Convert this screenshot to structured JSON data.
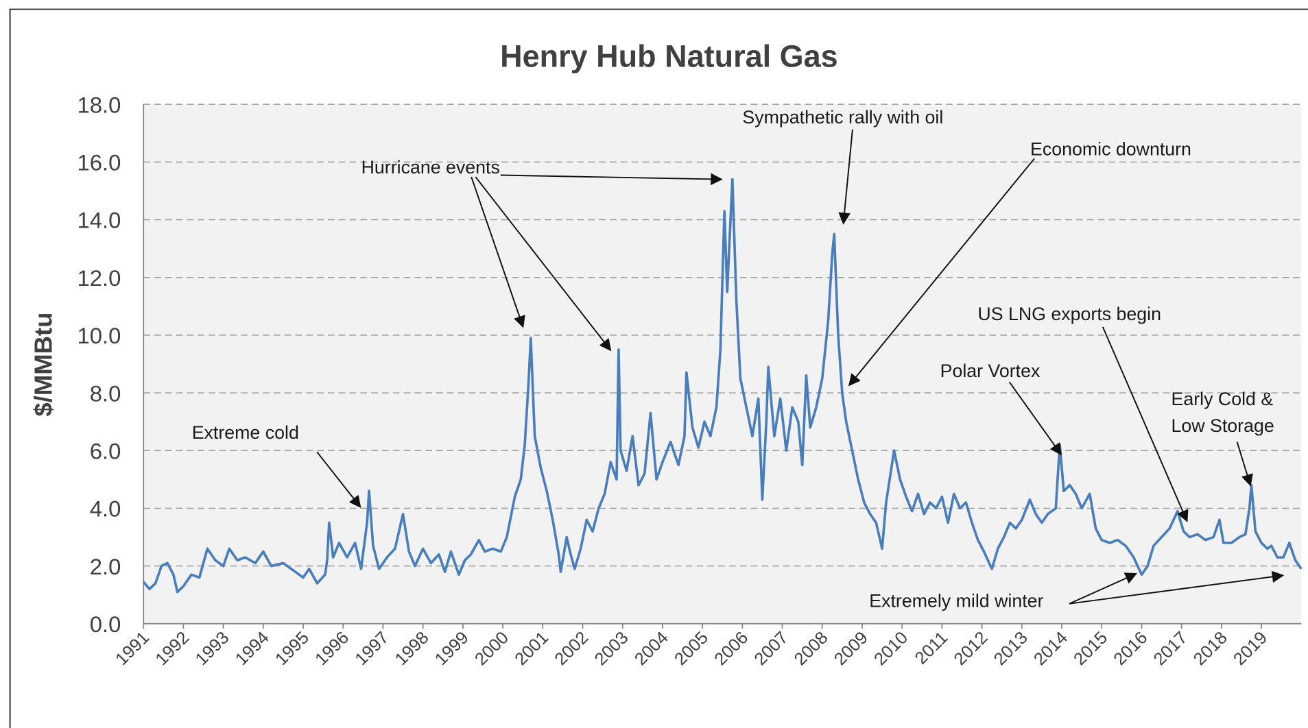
{
  "chart_data": {
    "type": "line",
    "title": "Henry Hub Natural Gas",
    "y_label": "$/MMBtu",
    "x": [
      1991.0,
      1991.15,
      1991.3,
      1991.45,
      1991.6,
      1991.75,
      1991.85,
      1992.0,
      1992.2,
      1992.4,
      1992.6,
      1992.8,
      1993.0,
      1993.15,
      1993.35,
      1993.55,
      1993.8,
      1994.0,
      1994.2,
      1994.5,
      1994.8,
      1995.0,
      1995.15,
      1995.35,
      1995.55,
      1995.6,
      1995.65,
      1995.75,
      1995.9,
      1996.1,
      1996.3,
      1996.45,
      1996.6,
      1996.65,
      1996.75,
      1996.9,
      1997.1,
      1997.3,
      1997.5,
      1997.65,
      1997.8,
      1998.0,
      1998.2,
      1998.4,
      1998.55,
      1998.7,
      1998.9,
      1999.05,
      1999.2,
      1999.4,
      1999.55,
      1999.75,
      1999.95,
      2000.1,
      2000.3,
      2000.45,
      2000.55,
      2000.65,
      2000.7,
      2000.8,
      2000.95,
      2001.1,
      2001.25,
      2001.4,
      2001.45,
      2001.6,
      2001.7,
      2001.8,
      2001.95,
      2002.1,
      2002.25,
      2002.4,
      2002.55,
      2002.7,
      2002.85,
      2002.9,
      2002.95,
      2003.1,
      2003.25,
      2003.4,
      2003.55,
      2003.7,
      2003.85,
      2004.0,
      2004.2,
      2004.4,
      2004.55,
      2004.6,
      2004.75,
      2004.9,
      2005.05,
      2005.2,
      2005.35,
      2005.45,
      2005.55,
      2005.62,
      2005.75,
      2005.85,
      2005.95,
      2006.1,
      2006.25,
      2006.4,
      2006.5,
      2006.6,
      2006.65,
      2006.8,
      2006.95,
      2007.1,
      2007.25,
      2007.4,
      2007.5,
      2007.6,
      2007.7,
      2007.85,
      2008.0,
      2008.15,
      2008.25,
      2008.3,
      2008.4,
      2008.5,
      2008.6,
      2008.75,
      2008.9,
      2009.05,
      2009.2,
      2009.35,
      2009.5,
      2009.6,
      2009.8,
      2009.95,
      2010.1,
      2010.25,
      2010.4,
      2010.55,
      2010.7,
      2010.85,
      2011.0,
      2011.15,
      2011.3,
      2011.45,
      2011.6,
      2011.75,
      2011.9,
      2012.05,
      2012.15,
      2012.25,
      2012.4,
      2012.55,
      2012.7,
      2012.85,
      2013.0,
      2013.2,
      2013.35,
      2013.5,
      2013.65,
      2013.85,
      2013.95,
      2014.05,
      2014.2,
      2014.35,
      2014.5,
      2014.7,
      2014.85,
      2015.0,
      2015.2,
      2015.4,
      2015.6,
      2015.8,
      2015.9,
      2016.0,
      2016.15,
      2016.3,
      2016.5,
      2016.7,
      2016.9,
      2017.05,
      2017.2,
      2017.4,
      2017.6,
      2017.8,
      2017.95,
      2018.05,
      2018.25,
      2018.45,
      2018.6,
      2018.7,
      2018.75,
      2018.85,
      2019.0,
      2019.15,
      2019.25,
      2019.4,
      2019.55,
      2019.7,
      2019.85,
      2020.0
    ],
    "series": [
      {
        "name": "Henry Hub",
        "color": "#4a7ebb",
        "values": [
          1.45,
          1.2,
          1.4,
          2.0,
          2.1,
          1.7,
          1.1,
          1.3,
          1.7,
          1.6,
          2.6,
          2.2,
          2.0,
          2.6,
          2.2,
          2.3,
          2.1,
          2.5,
          2.0,
          2.1,
          1.8,
          1.6,
          1.9,
          1.4,
          1.7,
          2.2,
          3.5,
          2.3,
          2.8,
          2.3,
          2.8,
          1.9,
          3.5,
          4.6,
          2.7,
          1.9,
          2.3,
          2.6,
          3.8,
          2.5,
          2.0,
          2.6,
          2.1,
          2.4,
          1.8,
          2.5,
          1.7,
          2.2,
          2.4,
          2.9,
          2.5,
          2.6,
          2.5,
          3.0,
          4.4,
          5.0,
          6.2,
          8.5,
          9.9,
          6.5,
          5.4,
          4.6,
          3.6,
          2.4,
          1.8,
          3.0,
          2.4,
          1.9,
          2.6,
          3.6,
          3.2,
          4.0,
          4.5,
          5.6,
          5.0,
          9.5,
          6.0,
          5.3,
          6.5,
          4.8,
          5.2,
          7.3,
          5.0,
          5.6,
          6.3,
          5.5,
          6.5,
          8.7,
          6.8,
          6.1,
          7.0,
          6.5,
          7.5,
          9.5,
          14.3,
          11.5,
          15.4,
          11.2,
          8.5,
          7.5,
          6.5,
          7.8,
          4.3,
          7.0,
          8.9,
          6.5,
          7.8,
          6.0,
          7.5,
          7.0,
          5.5,
          8.6,
          6.8,
          7.5,
          8.5,
          10.5,
          12.8,
          13.5,
          10.0,
          8.0,
          7.0,
          6.0,
          5.0,
          4.2,
          3.8,
          3.5,
          2.6,
          4.2,
          6.0,
          5.0,
          4.4,
          3.9,
          4.5,
          3.8,
          4.2,
          4.0,
          4.4,
          3.5,
          4.5,
          4.0,
          4.2,
          3.5,
          2.9,
          2.5,
          2.2,
          1.9,
          2.6,
          3.0,
          3.5,
          3.3,
          3.6,
          4.3,
          3.8,
          3.5,
          3.8,
          4.0,
          6.2,
          4.6,
          4.8,
          4.5,
          4.0,
          4.5,
          3.3,
          2.9,
          2.8,
          2.9,
          2.7,
          2.3,
          2.0,
          1.7,
          2.0,
          2.7,
          3.0,
          3.3,
          3.9,
          3.2,
          3.0,
          3.1,
          2.9,
          3.0,
          3.6,
          2.8,
          2.8,
          3.0,
          3.1,
          4.0,
          4.8,
          3.2,
          2.8,
          2.6,
          2.7,
          2.3,
          2.3,
          2.8,
          2.2,
          1.9
        ]
      }
    ],
    "xlim": [
      1991,
      2020
    ],
    "xticks": [
      1991,
      1992,
      1993,
      1994,
      1995,
      1996,
      1997,
      1998,
      1999,
      2000,
      2001,
      2002,
      2003,
      2004,
      2005,
      2006,
      2007,
      2008,
      2009,
      2010,
      2011,
      2012,
      2013,
      2014,
      2015,
      2016,
      2017,
      2018,
      2019
    ],
    "ylim": [
      0,
      18
    ],
    "yticks": [
      {
        "value": 0,
        "label": "0.0"
      },
      {
        "value": 2,
        "label": "2.0"
      },
      {
        "value": 4,
        "label": "4.0"
      },
      {
        "value": 6,
        "label": "6.0"
      },
      {
        "value": 8,
        "label": "8.0"
      },
      {
        "value": 10,
        "label": "10.0"
      },
      {
        "value": 12,
        "label": "12.0"
      },
      {
        "value": 14,
        "label": "14.0"
      },
      {
        "value": 16,
        "label": "16.0"
      },
      {
        "value": 18,
        "label": "18.0"
      }
    ],
    "grid": true,
    "annotations": [
      {
        "lines": [
          "Hurricane events"
        ]
      },
      {
        "lines": [
          "Sympathetic rally with oil"
        ]
      },
      {
        "lines": [
          "Economic downturn"
        ]
      },
      {
        "lines": [
          "US LNG exports begin"
        ]
      },
      {
        "lines": [
          "Polar Vortex"
        ]
      },
      {
        "lines": [
          "Early Cold &",
          "Low Storage"
        ]
      },
      {
        "lines": [
          "Extreme cold"
        ]
      },
      {
        "lines": [
          "Extremely mild winter"
        ]
      }
    ]
  }
}
